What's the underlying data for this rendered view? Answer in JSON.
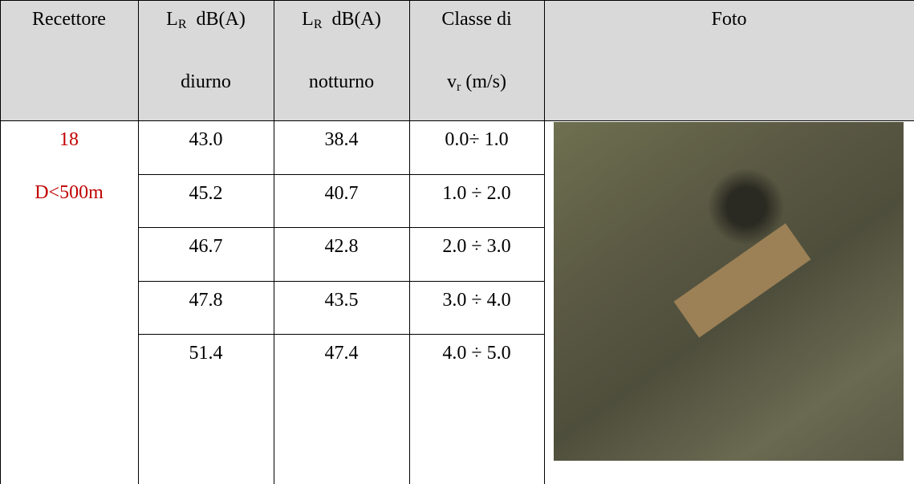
{
  "table": {
    "header": [
      {
        "text": "Recettore"
      },
      {
        "sym": "L",
        "sub": "R",
        "unit": "dB(A)",
        "line2": "diurno"
      },
      {
        "sym": "L",
        "sub": "R",
        "unit": "dB(A)",
        "line2": "notturno"
      },
      {
        "text": "Classe di",
        "sym": "v",
        "sub": "r",
        "unit": "(m/s)"
      },
      {
        "text": "Foto"
      }
    ],
    "receptor": {
      "id": "18",
      "distance": "D<500m"
    },
    "rows": [
      [
        "43.0",
        "38.4",
        "0.0÷ 1.0"
      ],
      [
        "45.2",
        "40.7",
        "1.0 ÷ 2.0"
      ],
      [
        "46.7",
        "42.8",
        "2.0 ÷ 3.0"
      ],
      [
        "47.8",
        "43.5",
        "3.0 ÷ 4.0"
      ],
      [
        "51.4",
        "47.4",
        "4.0 ÷ 5.0"
      ]
    ]
  }
}
